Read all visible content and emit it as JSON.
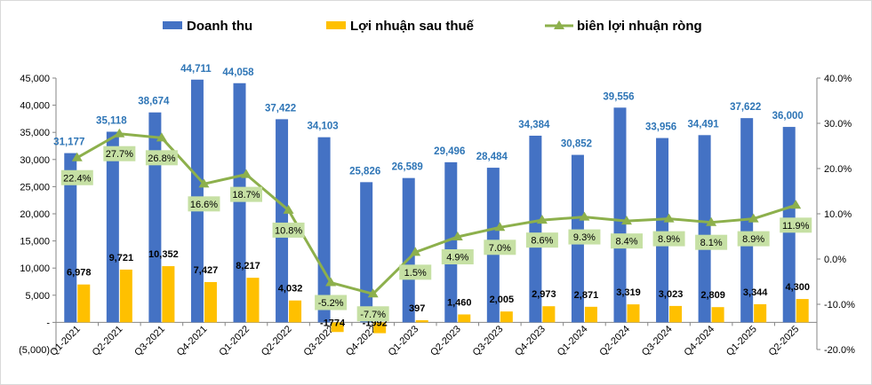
{
  "legend": {
    "revenue": "Doanh thu",
    "profit": "Lợi nhuận sau thuế",
    "margin": "biên lợi nhuận ròng"
  },
  "colors": {
    "revenue": "#4472c4",
    "profit": "#ffc000",
    "margin_line": "#8db04c",
    "margin_label_bg": "#c6e0a4",
    "revenue_label": "#2e75b6"
  },
  "chart_data": {
    "type": "bar",
    "categories": [
      "Q1-2021",
      "Q2-2021",
      "Q3-2021",
      "Q4-2021",
      "Q1-2022",
      "Q2-2022",
      "Q3-2022",
      "Q4-2022",
      "Q1-2023",
      "Q2-2023",
      "Q3-2023",
      "Q4-2023",
      "Q1-2024",
      "Q2-2024",
      "Q3-2024",
      "Q4-2024",
      "Q1-2025",
      "Q2-2025"
    ],
    "series": [
      {
        "name": "Doanh thu",
        "type": "bar",
        "axis": "left",
        "values": [
          31177,
          35118,
          38674,
          44711,
          44058,
          37422,
          34103,
          25826,
          26589,
          29496,
          28484,
          34384,
          30852,
          39556,
          33956,
          34491,
          37622,
          36000
        ],
        "labels": [
          "31,177",
          "35,118",
          "38,674",
          "44,711",
          "44,058",
          "37,422",
          "34,103",
          "25,826",
          "26,589",
          "29,496",
          "28,484",
          "34,384",
          "30,852",
          "39,556",
          "33,956",
          "34,491",
          "37,622",
          "36,000"
        ]
      },
      {
        "name": "Lợi nhuận sau thuế",
        "type": "bar",
        "axis": "left",
        "values": [
          6978,
          9721,
          10352,
          7427,
          8217,
          4032,
          -1774,
          -1992,
          397,
          1460,
          2005,
          2973,
          2871,
          3319,
          3023,
          2809,
          3344,
          4300
        ],
        "labels": [
          "6,978",
          "9,721",
          "10,352",
          "7,427",
          "8,217",
          "4,032",
          "-1774",
          "-1992",
          "397",
          "1,460",
          "2,005",
          "2,973",
          "2,871",
          "3,319",
          "3,023",
          "2,809",
          "3,344",
          "4,300"
        ]
      },
      {
        "name": "biên lợi nhuận ròng",
        "type": "line",
        "axis": "right",
        "values": [
          22.4,
          27.7,
          26.8,
          16.6,
          18.7,
          10.8,
          -5.2,
          -7.7,
          1.5,
          4.9,
          7.0,
          8.6,
          9.3,
          8.4,
          8.9,
          8.1,
          8.9,
          11.9
        ],
        "labels": [
          "22.4%",
          "27.7%",
          "26.8%",
          "16.6%",
          "18.7%",
          "10.8%",
          "-5.2%",
          "-7.7%",
          "1.5%",
          "4.9%",
          "7.0%",
          "8.6%",
          "9.3%",
          "8.4%",
          "8.9%",
          "8.1%",
          "8.9%",
          "11.9%"
        ]
      }
    ],
    "left_axis": {
      "ylim": [
        -5000,
        45000
      ],
      "ticks": [
        -5000,
        0,
        5000,
        10000,
        15000,
        20000,
        25000,
        30000,
        35000,
        40000,
        45000
      ],
      "tick_labels": [
        "(5,000)",
        "-",
        "5,000",
        "10,000",
        "15,000",
        "20,000",
        "25,000",
        "30,000",
        "35,000",
        "40,000",
        "45,000"
      ]
    },
    "right_axis": {
      "ylim": [
        -20,
        40
      ],
      "ticks": [
        -20,
        -10,
        0,
        10,
        20,
        30,
        40
      ],
      "tick_labels": [
        "-20.0%",
        "-10.0%",
        "0.0%",
        "10.0%",
        "20.0%",
        "30.0%",
        "40.0%"
      ]
    },
    "grid": false,
    "legend_position": "top"
  }
}
